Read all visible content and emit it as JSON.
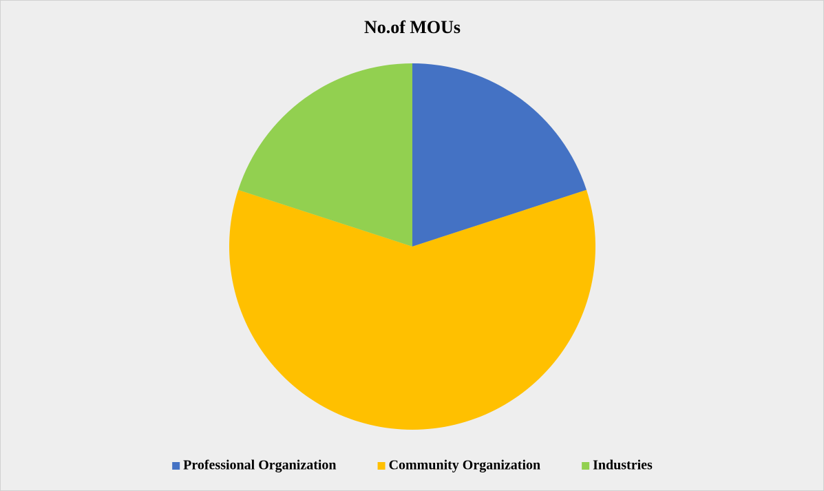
{
  "chart_data": {
    "type": "pie",
    "title": "No.of MOUs",
    "categories": [
      "Professional Organization",
      "Community Organization",
      "Industries"
    ],
    "values": [
      20,
      60,
      20
    ],
    "colors": [
      "#4472c4",
      "#ffc000",
      "#92d050"
    ],
    "legend": "bottom"
  }
}
